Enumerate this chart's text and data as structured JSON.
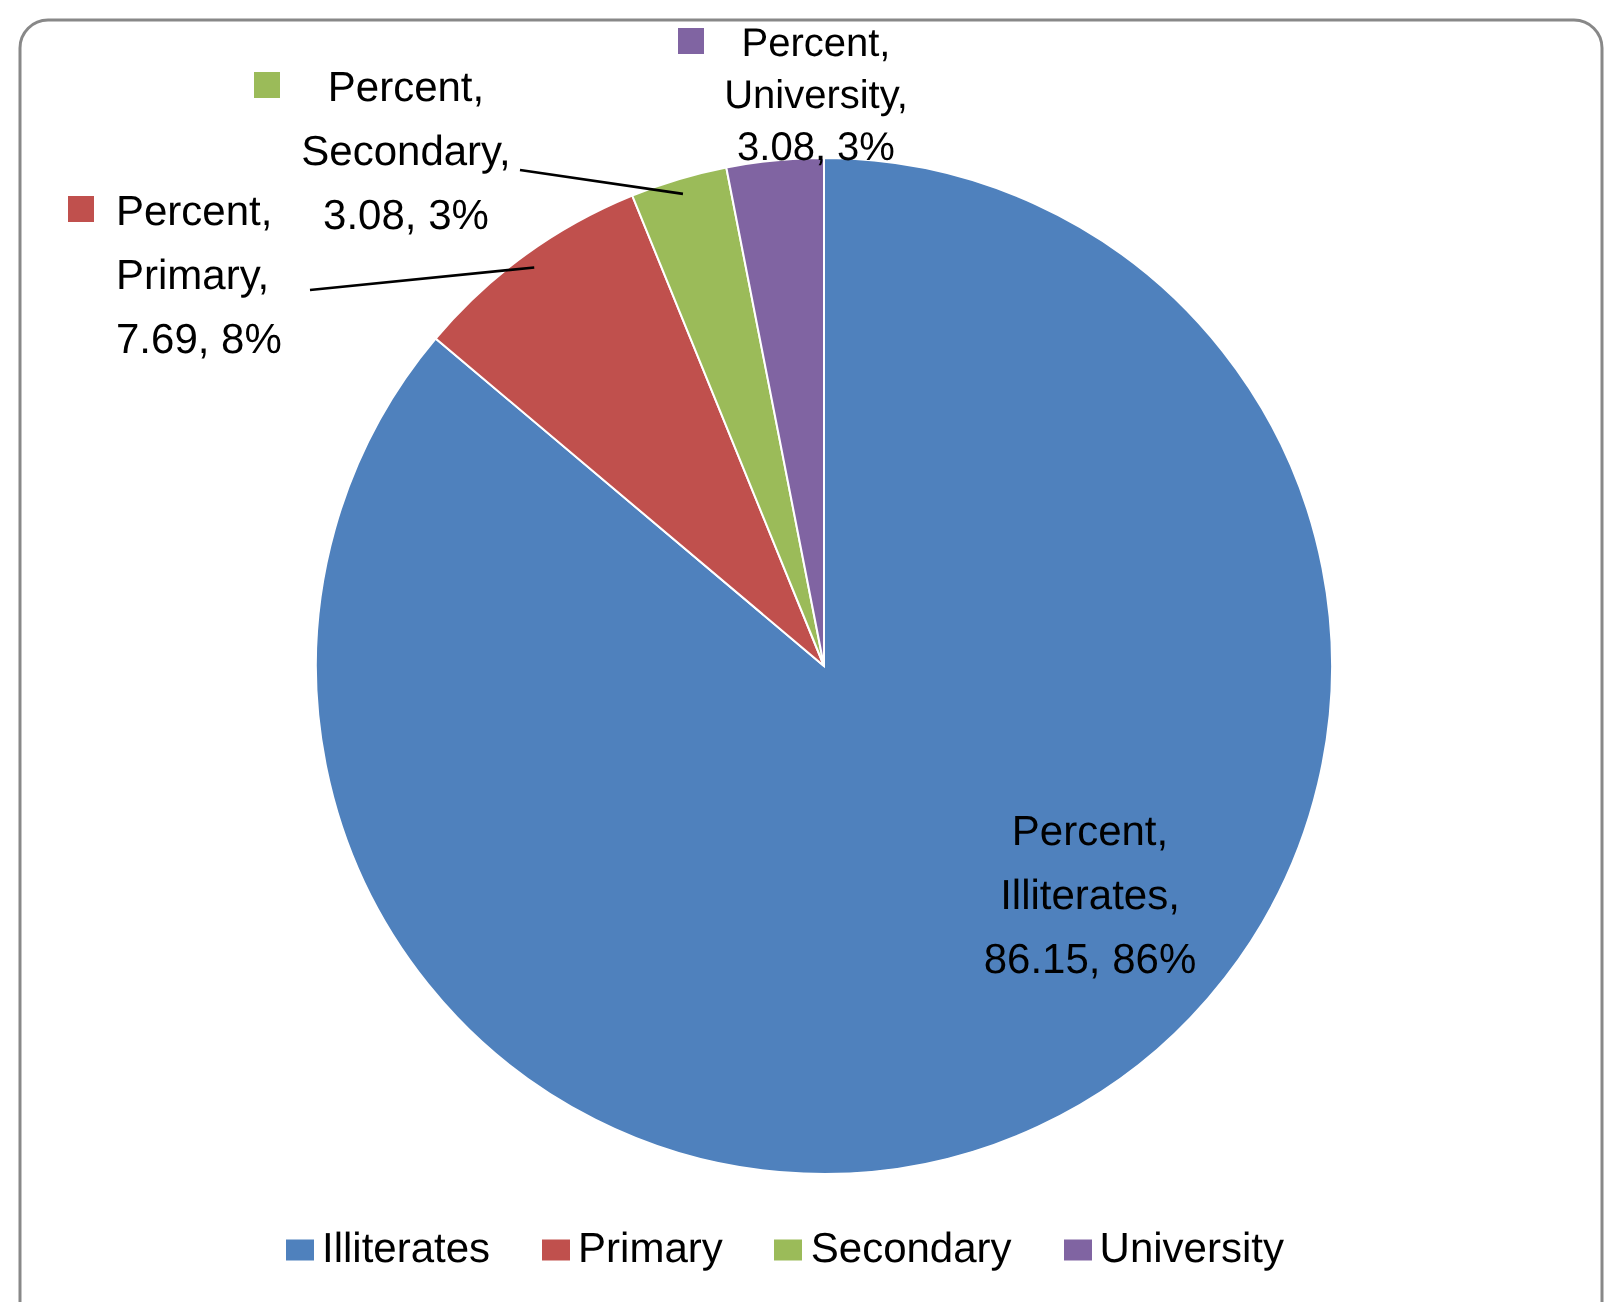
{
  "chart_data": {
    "type": "pie",
    "categories": [
      "Illiterates",
      "Primary",
      "Secondary",
      "University"
    ],
    "values": [
      86.15,
      7.69,
      3.08,
      3.08
    ],
    "colors": [
      "#4f81bd",
      "#c0504d",
      "#9bbb59",
      "#8064a2"
    ],
    "value_labels": [
      "Percent, Illiterates, 86.15, 86%",
      "Percent, Primary, 7.69, 8%",
      "Percent, Secondary, 3.08, 3%",
      "Percent, University, 3.08, 3%"
    ],
    "legend": "bottom"
  }
}
